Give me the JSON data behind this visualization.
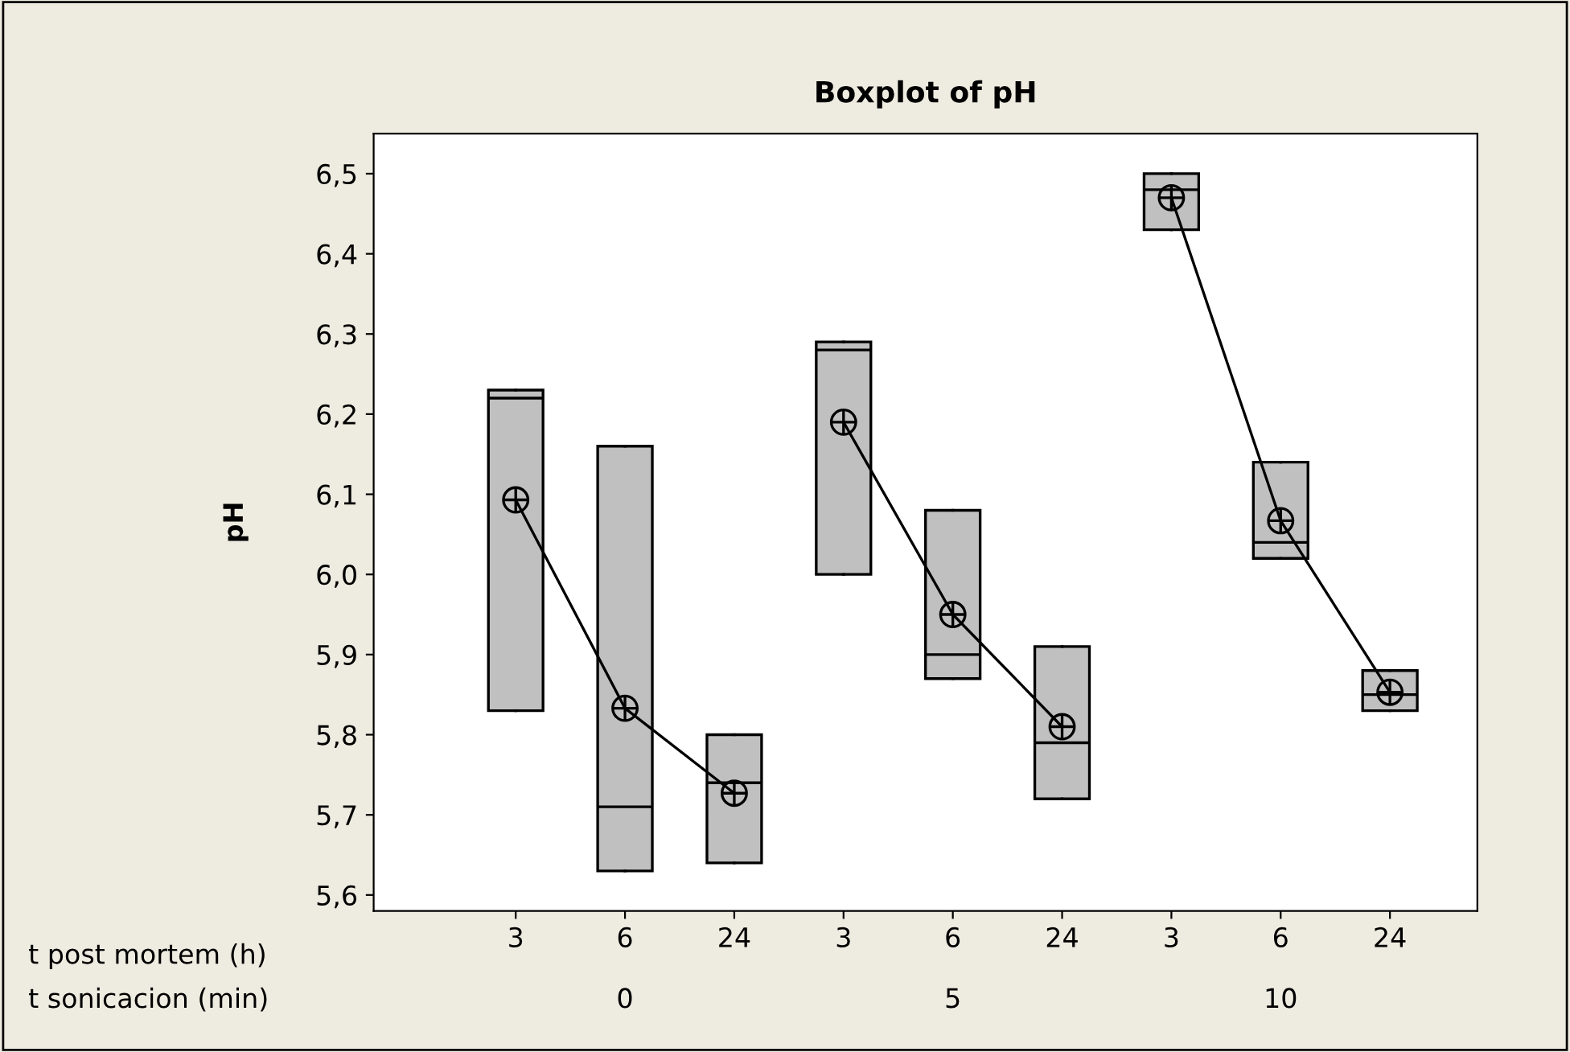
{
  "chart_data": {
    "type": "box",
    "title": "Boxplot of pH",
    "ylabel": "pH",
    "xlabel": "t post mortem (h)",
    "annotations": [
      "t sonicacion (min)",
      "0",
      "5",
      "10"
    ],
    "categories": [
      "3",
      "6",
      "24",
      "3",
      "6",
      "24",
      "3",
      "6",
      "24"
    ],
    "color": "#c0c0c0",
    "series": [
      {
        "type": "line",
        "marker": "circle",
        "color": "#000000",
        "values": [
          6.093,
          5.833,
          5.727,
          null,
          null,
          null,
          null,
          null,
          null
        ]
      },
      {
        "type": "line",
        "marker": "circle",
        "color": "#000000",
        "values": [
          null,
          null,
          null,
          6.19,
          5.95,
          5.81,
          null,
          null,
          null
        ]
      },
      {
        "type": "line",
        "marker": "circle",
        "color": "#000000",
        "values": [
          null,
          null,
          null,
          null,
          null,
          null,
          6.47,
          6.067,
          5.853
        ]
      }
    ],
    "boxes": [
      {
        "low": 5.83,
        "q1": 5.83,
        "median": 6.22,
        "q3": 6.23,
        "high": 6.23
      },
      {
        "low": 5.63,
        "q1": 5.63,
        "median": 5.71,
        "q3": 6.16,
        "high": 6.16
      },
      {
        "low": 5.64,
        "q1": 5.64,
        "median": 5.74,
        "q3": 5.8,
        "high": 5.8
      },
      {
        "low": 6.0,
        "q1": 6.0,
        "median": 6.28,
        "q3": 6.29,
        "high": 6.29
      },
      {
        "low": 5.87,
        "q1": 5.87,
        "median": 5.9,
        "q3": 6.08,
        "high": 6.08
      },
      {
        "low": 5.72,
        "q1": 5.72,
        "median": 5.79,
        "q3": 5.91,
        "high": 5.91
      },
      {
        "low": 6.43,
        "q1": 6.43,
        "median": 6.48,
        "q3": 6.5,
        "high": 6.5
      },
      {
        "low": 6.02,
        "q1": 6.02,
        "median": 6.04,
        "q3": 6.14,
        "high": 6.14
      },
      {
        "low": 5.83,
        "q1": 5.83,
        "median": 5.85,
        "q3": 5.88,
        "high": 5.88
      }
    ],
    "ylim": [
      5.58,
      6.55
    ],
    "yticks": [
      {
        "value": 5.6,
        "label": "5,6"
      },
      {
        "value": 5.7,
        "label": "5,7"
      },
      {
        "value": 5.8,
        "label": "5,8"
      },
      {
        "value": 5.9,
        "label": "5,9"
      },
      {
        "value": 6.0,
        "label": "6,0"
      },
      {
        "value": 6.1,
        "label": "6,1"
      },
      {
        "value": 6.2,
        "label": "6,2"
      },
      {
        "value": 6.3,
        "label": "6,3"
      },
      {
        "value": 6.4,
        "label": "6,4"
      },
      {
        "value": 6.5,
        "label": "6,5"
      }
    ]
  }
}
